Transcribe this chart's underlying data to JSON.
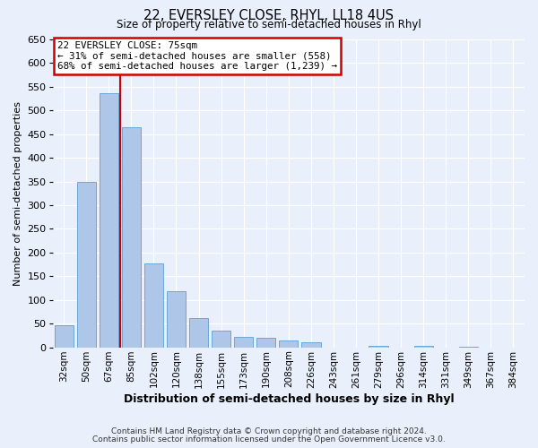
{
  "title1": "22, EVERSLEY CLOSE, RHYL, LL18 4US",
  "title2": "Size of property relative to semi-detached houses in Rhyl",
  "xlabel": "Distribution of semi-detached houses by size in Rhyl",
  "ylabel": "Number of semi-detached properties",
  "footer1": "Contains HM Land Registry data © Crown copyright and database right 2024.",
  "footer2": "Contains public sector information licensed under the Open Government Licence v3.0.",
  "bin_labels": [
    "32sqm",
    "50sqm",
    "67sqm",
    "85sqm",
    "102sqm",
    "120sqm",
    "138sqm",
    "155sqm",
    "173sqm",
    "190sqm",
    "208sqm",
    "226sqm",
    "243sqm",
    "261sqm",
    "279sqm",
    "296sqm",
    "314sqm",
    "331sqm",
    "349sqm",
    "367sqm",
    "384sqm"
  ],
  "bar_values": [
    47,
    349,
    536,
    465,
    178,
    118,
    62,
    36,
    22,
    20,
    14,
    11,
    0,
    0,
    4,
    0,
    3,
    0,
    2,
    0,
    0
  ],
  "bar_color": "#aec6e8",
  "bar_edge_color": "#5a9fd4",
  "background_color": "#eaf0fb",
  "grid_color": "#ffffff",
  "annotation_box_color": "#cc0000",
  "property_line_x": 2.5,
  "property_label": "22 EVERSLEY CLOSE: 75sqm",
  "pct_smaller": 31,
  "count_smaller": "558",
  "pct_larger": 68,
  "count_larger": "1,239",
  "ylim": [
    0,
    650
  ],
  "yticks": [
    0,
    50,
    100,
    150,
    200,
    250,
    300,
    350,
    400,
    450,
    500,
    550,
    600,
    650
  ]
}
